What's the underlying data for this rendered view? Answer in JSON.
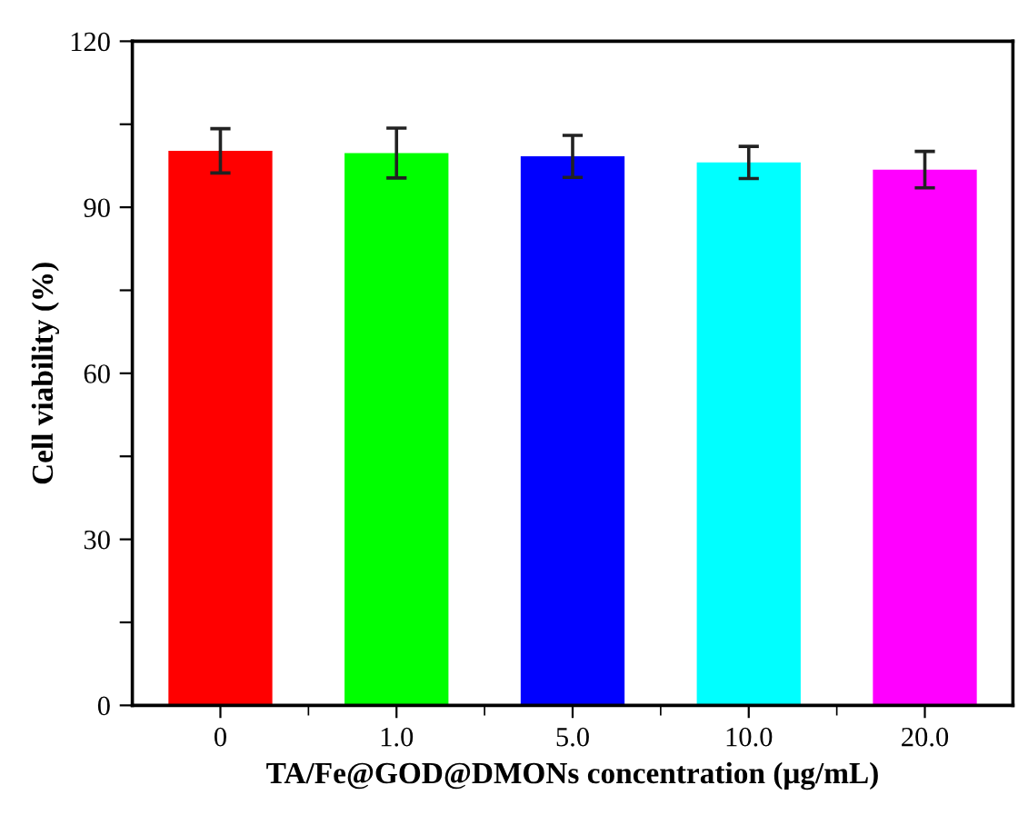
{
  "chart_data": {
    "type": "bar",
    "xlabel": "TA/Fe@GOD@DMONs concentration (μg/mL)",
    "ylabel": "Cell viability (%)",
    "categories": [
      "0",
      "1.0",
      "5.0",
      "10.0",
      "20.0"
    ],
    "values": [
      100.2,
      99.8,
      99.2,
      98.1,
      96.8
    ],
    "errors": [
      4.0,
      4.5,
      3.8,
      2.9,
      3.3
    ],
    "colors": [
      "#ff0000",
      "#00ff00",
      "#0000ff",
      "#00ffff",
      "#ff00ff"
    ],
    "ylim": [
      0,
      120
    ],
    "yticks": [
      0,
      {
        "value": 15,
        "label": null
      },
      30,
      {
        "value": 45,
        "label": null
      },
      60,
      {
        "value": 75,
        "label": null
      },
      90,
      {
        "value": 105,
        "label": null
      },
      120
    ],
    "grid": false
  }
}
